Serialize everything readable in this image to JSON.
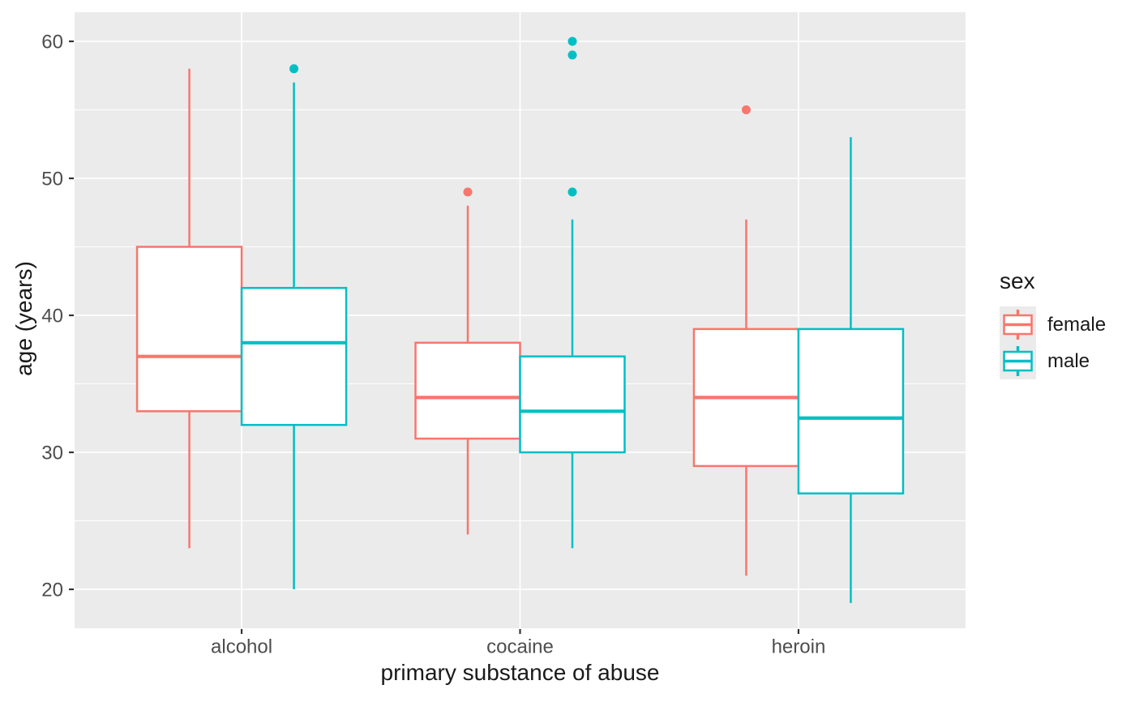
{
  "chart_data": {
    "type": "grouped_boxplot",
    "title": "",
    "xlabel": "primary substance of abuse",
    "ylabel": "age (years)",
    "categories": [
      "alcohol",
      "cocaine",
      "heroin"
    ],
    "y_axis": {
      "major_ticks": [
        20,
        30,
        40,
        50,
        60
      ],
      "minor_ticks": [
        25,
        35,
        45,
        55
      ],
      "range": [
        17.2,
        62.1
      ],
      "grid": "on"
    },
    "legend": {
      "title": "sex",
      "position": "right",
      "entries": [
        {
          "label": "female",
          "color": "#F8766D"
        },
        {
          "label": "male",
          "color": "#00BFC4"
        }
      ]
    },
    "series": [
      {
        "name": "female",
        "color": "#F8766D",
        "boxes": [
          {
            "category": "alcohol",
            "whisker_low": 23,
            "q1": 33,
            "median": 37,
            "q3": 45,
            "whisker_high": 58,
            "outliers": []
          },
          {
            "category": "cocaine",
            "whisker_low": 24,
            "q1": 31,
            "median": 34,
            "q3": 38,
            "whisker_high": 48,
            "outliers": [
              49
            ]
          },
          {
            "category": "heroin",
            "whisker_low": 21,
            "q1": 29,
            "median": 34,
            "q3": 39,
            "whisker_high": 47,
            "outliers": [
              55
            ]
          }
        ]
      },
      {
        "name": "male",
        "color": "#00BFC4",
        "boxes": [
          {
            "category": "alcohol",
            "whisker_low": 20,
            "q1": 32,
            "median": 38,
            "q3": 42,
            "whisker_high": 57,
            "outliers": [
              58
            ]
          },
          {
            "category": "cocaine",
            "whisker_low": 23,
            "q1": 30,
            "median": 33,
            "q3": 37,
            "whisker_high": 47,
            "outliers": [
              49,
              59,
              60
            ]
          },
          {
            "category": "heroin",
            "whisker_low": 19,
            "q1": 27,
            "median": 32.5,
            "q3": 39,
            "whisker_high": 53,
            "outliers": []
          }
        ]
      }
    ],
    "style": {
      "panel_bg": "#EBEBEB",
      "grid_color": "#FFFFFF",
      "box_fill": "#FFFFFF",
      "tick_mark_color": "#333333",
      "tick_label_color": "#4D4D4D",
      "axis_title_color": "#1a1a1a"
    }
  }
}
